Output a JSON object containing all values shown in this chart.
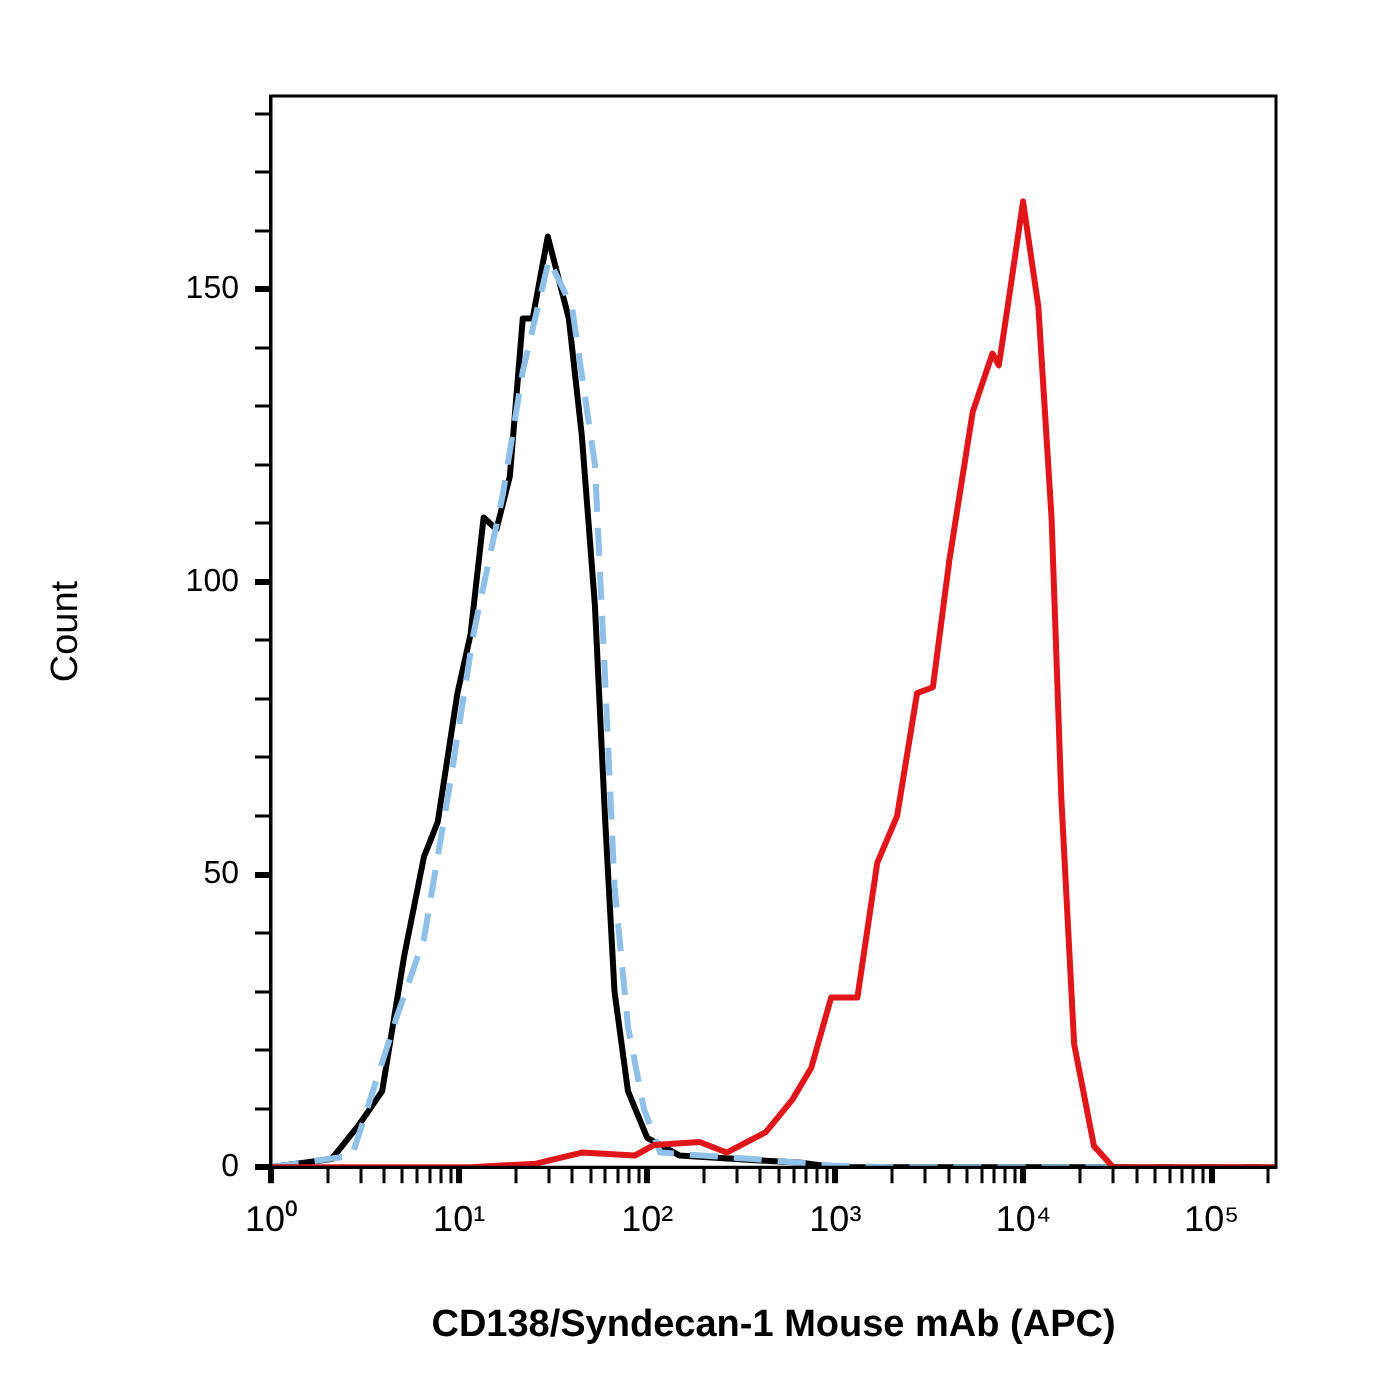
{
  "chart_data": {
    "type": "line",
    "xlabel": "CD138/Syndecan-1 Mouse mAb (APC)",
    "ylabel": "Count",
    "log": "x",
    "grid": false,
    "legend": false,
    "marker": "none",
    "xlim": [
      1,
      220000
    ],
    "ylim": [
      0,
      183
    ],
    "xticks": [
      {
        "value": 1,
        "label": "10⁰"
      },
      {
        "value": 2,
        "label": null
      },
      {
        "value": 3,
        "label": null
      },
      {
        "value": 4,
        "label": null
      },
      {
        "value": 5,
        "label": null
      },
      {
        "value": 6,
        "label": null
      },
      {
        "value": 7,
        "label": null
      },
      {
        "value": 8,
        "label": null
      },
      {
        "value": 9,
        "label": null
      },
      {
        "value": 10,
        "label": "10¹"
      },
      {
        "value": 20,
        "label": null
      },
      {
        "value": 30,
        "label": null
      },
      {
        "value": 40,
        "label": null
      },
      {
        "value": 50,
        "label": null
      },
      {
        "value": 60,
        "label": null
      },
      {
        "value": 70,
        "label": null
      },
      {
        "value": 80,
        "label": null
      },
      {
        "value": 90,
        "label": null
      },
      {
        "value": 100,
        "label": "10²"
      },
      {
        "value": 200,
        "label": null
      },
      {
        "value": 300,
        "label": null
      },
      {
        "value": 400,
        "label": null
      },
      {
        "value": 500,
        "label": null
      },
      {
        "value": 600,
        "label": null
      },
      {
        "value": 700,
        "label": null
      },
      {
        "value": 800,
        "label": null
      },
      {
        "value": 900,
        "label": null
      },
      {
        "value": 1000,
        "label": "10³"
      },
      {
        "value": 2000,
        "label": null
      },
      {
        "value": 3000,
        "label": null
      },
      {
        "value": 4000,
        "label": null
      },
      {
        "value": 5000,
        "label": null
      },
      {
        "value": 6000,
        "label": null
      },
      {
        "value": 7000,
        "label": null
      },
      {
        "value": 8000,
        "label": null
      },
      {
        "value": 9000,
        "label": null
      },
      {
        "value": 10000,
        "label": "10⁴"
      },
      {
        "value": 20000,
        "label": null
      },
      {
        "value": 30000,
        "label": null
      },
      {
        "value": 40000,
        "label": null
      },
      {
        "value": 50000,
        "label": null
      },
      {
        "value": 60000,
        "label": null
      },
      {
        "value": 70000,
        "label": null
      },
      {
        "value": 80000,
        "label": null
      },
      {
        "value": 90000,
        "label": null
      },
      {
        "value": 100000,
        "label": "10⁵"
      },
      {
        "value": 200000,
        "label": null
      }
    ],
    "yticks": [
      0,
      {
        "value": 10,
        "label": null
      },
      {
        "value": 20,
        "label": null
      },
      {
        "value": 30,
        "label": null
      },
      {
        "value": 40,
        "label": null
      },
      50,
      {
        "value": 60,
        "label": null
      },
      {
        "value": 70,
        "label": null
      },
      {
        "value": 80,
        "label": null
      },
      {
        "value": 90,
        "label": null
      },
      100,
      {
        "value": 110,
        "label": null
      },
      {
        "value": 120,
        "label": null
      },
      {
        "value": 130,
        "label": null
      },
      {
        "value": 140,
        "label": null
      },
      150,
      {
        "value": 160,
        "label": null
      },
      {
        "value": 170,
        "label": null
      },
      {
        "value": 180,
        "label": null
      }
    ],
    "series": [
      {
        "color": "#e0161b",
        "line_style": "solid",
        "x": [
          1,
          11.5,
          25.6,
          45,
          86,
          109,
          190,
          264,
          427,
          590,
          745,
          950,
          1310,
          1670,
          2130,
          2720,
          3300,
          4050,
          5370,
          6840,
          7400,
          8330,
          9950,
          12000,
          14100,
          15900,
          18600,
          23700,
          30000,
          220000
        ],
        "values": [
          0,
          0,
          0.6,
          2.5,
          2,
          3.8,
          4.3,
          2.5,
          6,
          11.5,
          17,
          29,
          29,
          52,
          60,
          81,
          82,
          104,
          129,
          139,
          137,
          148,
          165,
          147,
          111,
          63,
          21,
          3.6,
          0,
          0
        ]
      },
      {
        "color": "#8ec0e8",
        "line_style": "dashed",
        "x": [
          1,
          2.7,
          4.7,
          6.5,
          9,
          11.9,
          17.1,
          21.8,
          30,
          39.8,
          52.7,
          59.6,
          67,
          79,
          96,
          117,
          363,
          950,
          2000,
          220000
        ],
        "values": [
          0,
          2,
          26,
          39,
          66,
          91,
          115,
          136,
          155,
          147,
          120,
          84,
          48,
          24,
          10,
          2.5,
          1.4,
          0.3,
          0,
          0
        ]
      },
      {
        "color": "#000000",
        "line_style": "solid",
        "x": [
          1,
          2.1,
          2.9,
          3.9,
          5.1,
          6.5,
          7.7,
          9.8,
          11.5,
          13.5,
          15.8,
          18.6,
          21.8,
          24.6,
          29.6,
          38.3,
          44.9,
          52.7,
          59.6,
          67,
          79,
          100,
          148,
          690,
          1000,
          220000
        ],
        "values": [
          0,
          1.4,
          7,
          13,
          36,
          53,
          59,
          81,
          91,
          111,
          109,
          118,
          145,
          145,
          159,
          145,
          125,
          96,
          60,
          30,
          13,
          5,
          2,
          0.7,
          0,
          0
        ]
      }
    ]
  }
}
